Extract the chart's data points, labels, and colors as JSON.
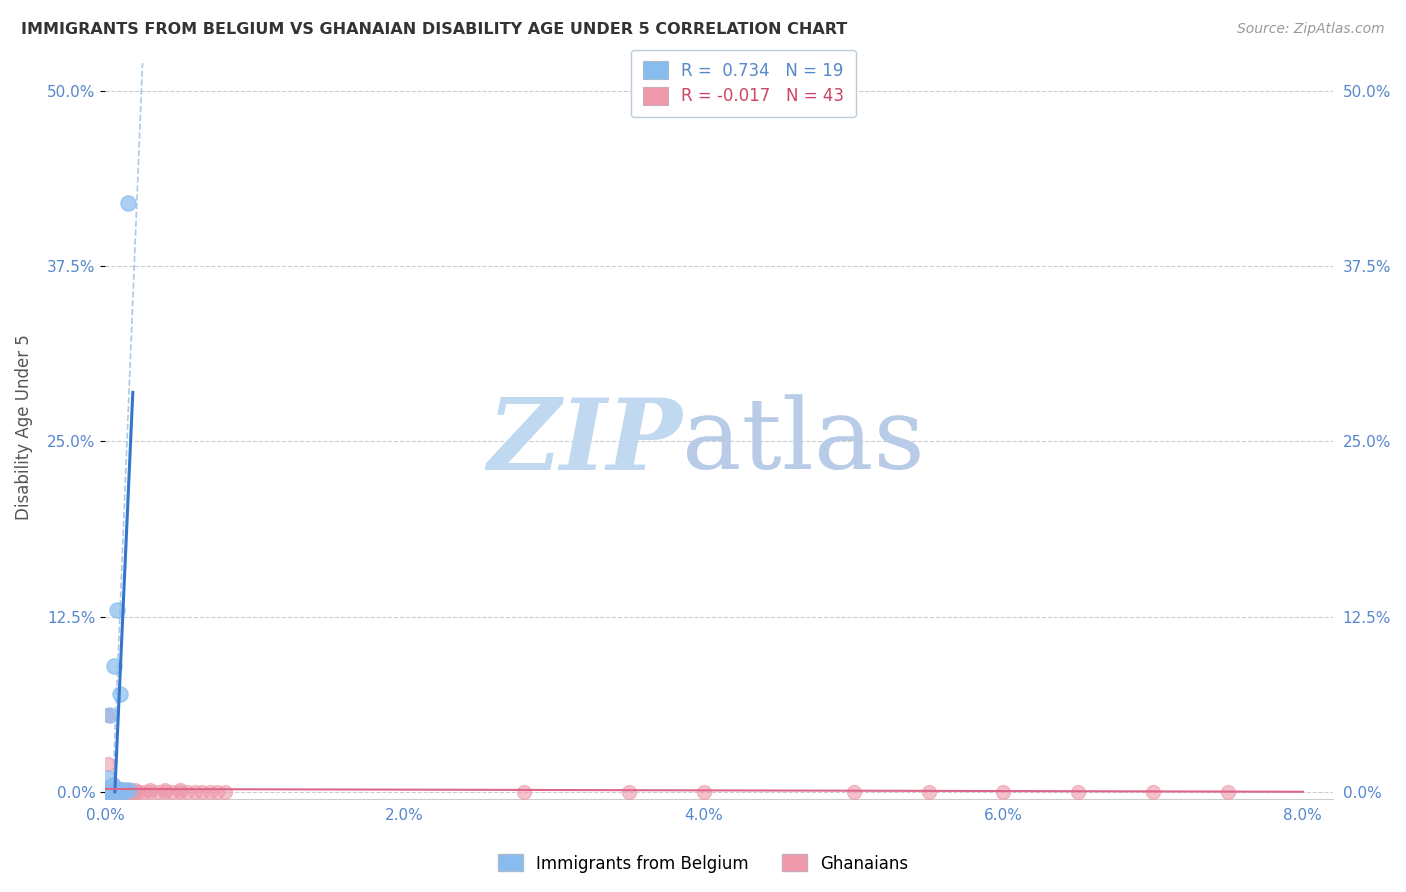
{
  "title": "IMMIGRANTS FROM BELGIUM VS GHANAIAN DISABILITY AGE UNDER 5 CORRELATION CHART",
  "source": "Source: ZipAtlas.com",
  "ylabel": "Disability Age Under 5",
  "legend_entries": [
    {
      "label": "Immigrants from Belgium",
      "color": "#a8c8f0",
      "R": "0.734",
      "N": "19"
    },
    {
      "label": "Ghanaians",
      "color": "#f5a8b8",
      "R": "-0.017",
      "N": "43"
    }
  ],
  "blue_scatter": [
    [
      0.0015,
      0.42
    ],
    [
      0.0008,
      0.13
    ],
    [
      0.0006,
      0.09
    ],
    [
      0.001,
      0.07
    ],
    [
      0.0003,
      0.055
    ],
    [
      0.0002,
      0.01
    ],
    [
      0.0005,
      0.005
    ],
    [
      0.0001,
      0.003
    ],
    [
      0.0004,
      0.002
    ],
    [
      0.0007,
      0.001
    ],
    [
      0.0009,
      0.001
    ],
    [
      0.0011,
      0.001
    ],
    [
      0.0013,
      0.001
    ],
    [
      0.0016,
      0.001
    ],
    [
      0.0002,
      0.0
    ],
    [
      0.0003,
      0.0
    ],
    [
      0.0006,
      0.0
    ],
    [
      0.001,
      0.0
    ],
    [
      0.0012,
      0.0
    ]
  ],
  "pink_scatter": [
    [
      0.0001,
      0.055
    ],
    [
      0.0002,
      0.02
    ],
    [
      0.0005,
      0.005
    ],
    [
      0.0003,
      0.003
    ],
    [
      0.001,
      0.002
    ],
    [
      0.0015,
      0.001
    ],
    [
      0.002,
      0.001
    ],
    [
      0.003,
      0.001
    ],
    [
      0.004,
      0.001
    ],
    [
      0.005,
      0.001
    ],
    [
      0.0008,
      0.0
    ],
    [
      0.0012,
      0.0
    ],
    [
      0.0018,
      0.0
    ],
    [
      0.0022,
      0.0
    ],
    [
      0.003,
      0.0
    ],
    [
      0.0035,
      0.0
    ],
    [
      0.004,
      0.0
    ],
    [
      0.0045,
      0.0
    ],
    [
      0.005,
      0.0
    ],
    [
      0.0055,
      0.0
    ],
    [
      0.006,
      0.0
    ],
    [
      0.0065,
      0.0
    ],
    [
      0.007,
      0.0
    ],
    [
      0.0075,
      0.0
    ],
    [
      0.0004,
      0.0
    ],
    [
      0.0006,
      0.0
    ],
    [
      0.0009,
      0.0
    ],
    [
      0.0011,
      0.0
    ],
    [
      0.0013,
      0.0
    ],
    [
      0.0016,
      0.0
    ],
    [
      0.002,
      0.0
    ],
    [
      0.0025,
      0.0
    ],
    [
      0.028,
      0.0
    ],
    [
      0.035,
      0.0
    ],
    [
      0.04,
      0.0
    ],
    [
      0.05,
      0.0
    ],
    [
      0.055,
      0.0
    ],
    [
      0.06,
      0.0
    ],
    [
      0.065,
      0.0
    ],
    [
      0.07,
      0.0
    ],
    [
      0.075,
      0.0
    ],
    [
      0.008,
      0.0
    ],
    [
      0.0017,
      0.0
    ]
  ],
  "blue_line_x": [
    0.00065,
    0.00185
  ],
  "blue_line_y": [
    0.0,
    0.285
  ],
  "dashed_line_x": [
    0.0005,
    0.0025
  ],
  "dashed_line_y": [
    0.0,
    0.52
  ],
  "pink_line_x": [
    0.0,
    0.08
  ],
  "pink_line_y": [
    0.002,
    0.0
  ],
  "xlim": [
    0.0,
    0.082
  ],
  "ylim": [
    -0.005,
    0.525
  ],
  "xtick_vals": [
    0.0,
    0.02,
    0.04,
    0.06,
    0.08
  ],
  "xtick_labels": [
    "0.0%",
    "2.0%",
    "4.0%",
    "6.0%",
    "8.0%"
  ],
  "ytick_vals": [
    0.0,
    0.125,
    0.25,
    0.375,
    0.5
  ],
  "ytick_labels": [
    "0.0%",
    "12.5%",
    "25.0%",
    "37.5%",
    "50.0%"
  ],
  "bg_color": "#ffffff",
  "grid_color": "#cccccc",
  "title_color": "#333333",
  "axis_label_color": "#555555",
  "tick_color": "#5588cc",
  "blue_line_color": "#3377cc",
  "pink_line_color": "#dd6688",
  "blue_scatter_color": "#88bbee",
  "pink_scatter_color": "#ee99aa",
  "dashed_line_color": "#99bbdd",
  "watermark_zip_color": "#c0d8f0",
  "watermark_atlas_color": "#b8cce8"
}
